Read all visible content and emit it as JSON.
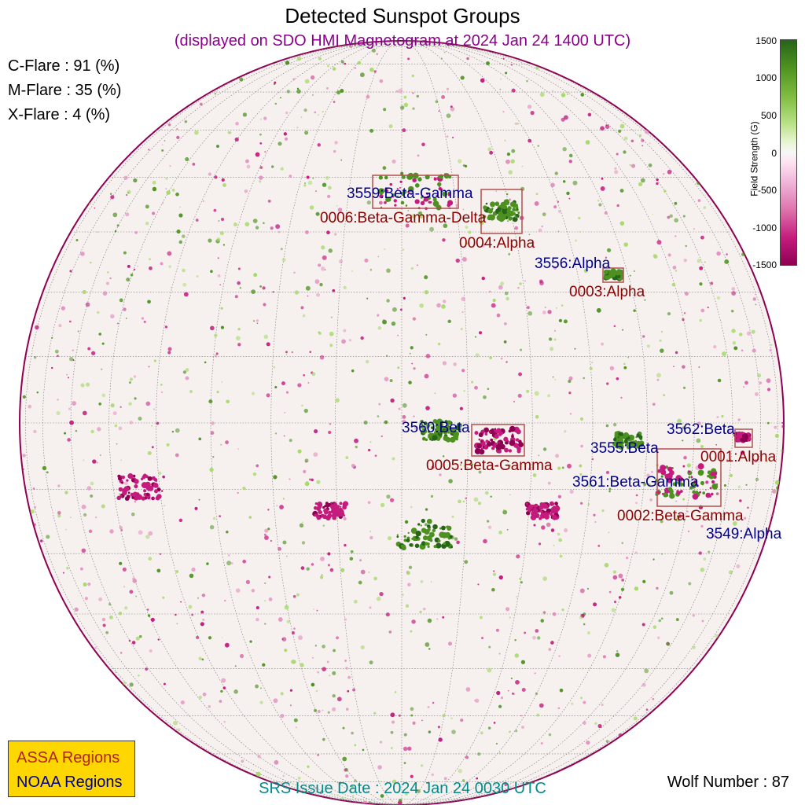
{
  "title": "Detected Sunspot Groups",
  "subtitle": "(displayed on SDO HMI Magnetogram at 2024 Jan 24 1400 UTC)",
  "flares": [
    {
      "label": "C-Flare : 91 (%)"
    },
    {
      "label": "M-Flare : 35 (%)"
    },
    {
      "label": "X-Flare :  4 (%)"
    }
  ],
  "legend": {
    "assa": "ASSA Regions",
    "noaa": "NOAA Regions"
  },
  "srs_issue": "SRS Issue Date : 2024 Jan 24 0030 UTC",
  "wolf_number": "Wolf Number : 87",
  "colorbar": {
    "label": "Field Strength (G)",
    "ticks": [
      "1500",
      "1000",
      "500",
      "0",
      "-500",
      "-1000",
      "-1500"
    ],
    "colors": {
      "positive": "#276419",
      "zero": "#f7f7f7",
      "negative": "#8e0152"
    }
  },
  "regions": {
    "r3559": "3559:Beta-Gamma",
    "r0006": "0006:Beta-Gamma-Delta",
    "r0004": "0004:Alpha",
    "r3556": "3556:Alpha",
    "r0003": "0003:Alpha",
    "r3560": "3560:Beta",
    "r0005": "0005:Beta-Gamma",
    "r3562": "3562:Beta",
    "r3555": "3555:Beta",
    "r0001": "0001:Alpha",
    "r3561": "3561:Beta-Gamma",
    "r0002": "0002:Beta-Gamma",
    "r3549": "3549:Alpha"
  },
  "colors": {
    "assa": "#8b0000",
    "noaa": "#00008b",
    "box": "#b25050"
  }
}
